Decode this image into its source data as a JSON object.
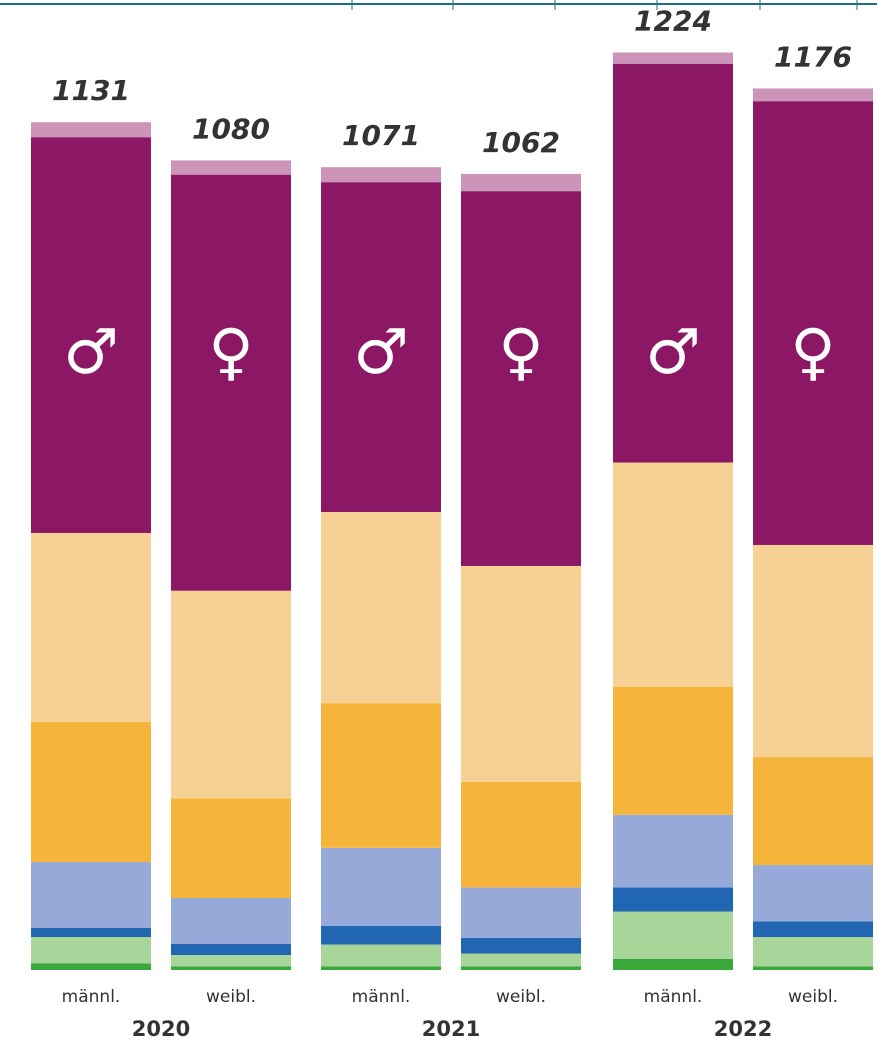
{
  "chart_data": {
    "type": "stacked_bar",
    "categories": [
      "männl.",
      "weibl.",
      "männl.",
      "weibl.",
      "männl.",
      "weibl."
    ],
    "groups": [
      "2020",
      "2021",
      "2022"
    ],
    "symbols": [
      "♂",
      "♀",
      "♂",
      "♀",
      "♂",
      "♀"
    ],
    "totals": [
      1131,
      1080,
      1071,
      1062,
      1224,
      1176
    ],
    "ylim": [
      0,
      1290
    ],
    "series": [
      {
        "color": "#3aa83a",
        "values": [
          9,
          5,
          5,
          5,
          15,
          5
        ]
      },
      {
        "color": "#a8d59a",
        "values": [
          35,
          15,
          29,
          17,
          63,
          39
        ]
      },
      {
        "color": "#2166b3",
        "values": [
          12,
          15,
          25,
          21,
          32,
          21
        ]
      },
      {
        "color": "#96a9d8",
        "values": [
          88,
          61,
          104,
          67,
          97,
          75
        ]
      },
      {
        "color": "#f5b53b",
        "values": [
          187,
          133,
          193,
          141,
          171,
          144
        ]
      },
      {
        "color": "#f6d193",
        "values": [
          252,
          277,
          255,
          288,
          299,
          283
        ]
      },
      {
        "color": "#8c1764",
        "values": [
          528,
          555,
          440,
          500,
          532,
          592
        ]
      },
      {
        "color": "#cc94b8",
        "values": [
          20,
          19,
          20,
          23,
          15,
          17
        ]
      }
    ]
  }
}
